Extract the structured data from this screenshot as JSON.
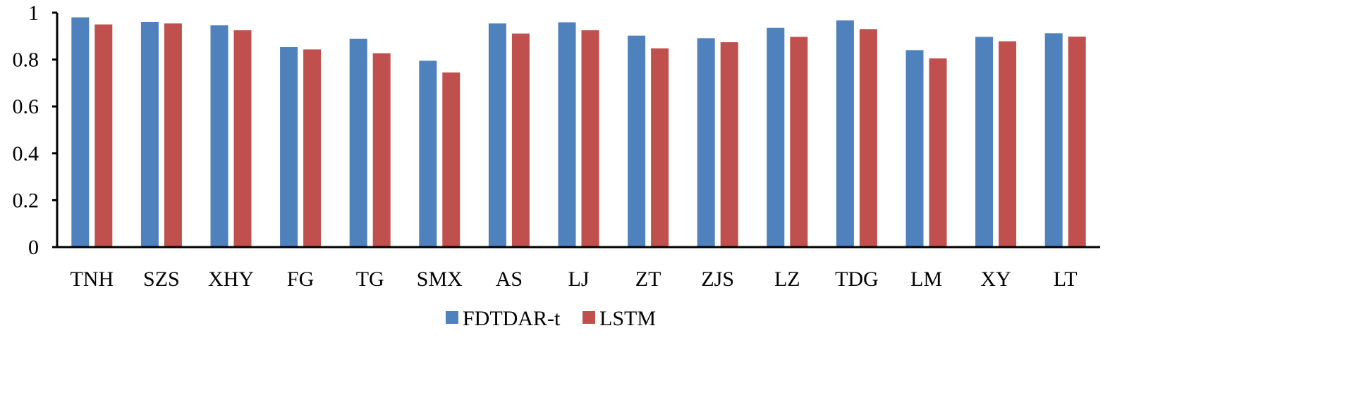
{
  "chart_data": {
    "type": "bar",
    "title": "",
    "xlabel": "",
    "ylabel": "",
    "ylim": [
      0,
      1
    ],
    "yticks": [
      "0",
      "0.2",
      "0.4",
      "0.6",
      "0.8",
      "1"
    ],
    "categories": [
      "TNH",
      "SZS",
      "XHY",
      "FG",
      "TG",
      "SMX",
      "AS",
      "LJ",
      "ZT",
      "ZJS",
      "LZ",
      "TDG",
      "LM",
      "XY",
      "LT"
    ],
    "series": [
      {
        "name": "FDTDAR-t",
        "color": "#4F81BD",
        "values": [
          0.98,
          0.961,
          0.946,
          0.853,
          0.889,
          0.795,
          0.954,
          0.959,
          0.902,
          0.891,
          0.935,
          0.967,
          0.84,
          0.897,
          0.912
        ]
      },
      {
        "name": "LSTM",
        "color": "#C0504D",
        "values": [
          0.95,
          0.954,
          0.925,
          0.843,
          0.827,
          0.745,
          0.911,
          0.925,
          0.848,
          0.874,
          0.897,
          0.93,
          0.805,
          0.878,
          0.898
        ]
      }
    ],
    "grid": false,
    "legend": "bottom"
  }
}
